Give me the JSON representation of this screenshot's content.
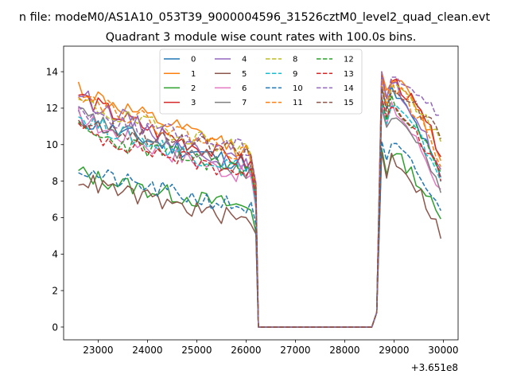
{
  "chart_data": {
    "type": "line",
    "suptitle": "n file: modeM0/AS1A10_053T39_9000004596_31526cztM0_level2_quad_clean.evt",
    "title": "Quadrant 3 module wise count rates with 100.0s bins.",
    "xlabel": "",
    "ylabel": "",
    "x_offset_label": "+3.651e8",
    "xlim": [
      22300,
      30300
    ],
    "ylim": [
      -0.7,
      15.4
    ],
    "xticks": [
      23000,
      24000,
      25000,
      26000,
      27000,
      28000,
      29000,
      30000
    ],
    "yticks": [
      0,
      2,
      4,
      6,
      8,
      10,
      12,
      14
    ],
    "grid": false,
    "legend_position": "upper-center",
    "legend_columns": 4,
    "segments": {
      "on1_start": 22600,
      "on1_end": 26100,
      "on1_step": 100,
      "gap_x": [
        26200,
        26250,
        28550,
        28650
      ],
      "on2_start": 28750,
      "on2_end": 29950,
      "on2_step": 100
    },
    "series": [
      {
        "name": "0",
        "color": "#1f77b4",
        "dash": "solid",
        "seg1_start": 11.5,
        "seg1_end": 8.9,
        "seg1_drop": 7.1,
        "seg2_peak": 13.2,
        "seg2_end": 8.1,
        "seed": 11
      },
      {
        "name": "1",
        "color": "#ff7f0e",
        "dash": "solid",
        "seg1_start": 13.2,
        "seg1_end": 9.6,
        "seg1_drop": 7.9,
        "seg2_peak": 14.0,
        "seg2_end": 9.4,
        "seed": 12
      },
      {
        "name": "2",
        "color": "#2ca02c",
        "dash": "solid",
        "seg1_start": 8.5,
        "seg1_end": 6.5,
        "seg1_drop": 5.2,
        "seg2_peak": 9.8,
        "seg2_end": 5.8,
        "seed": 13
      },
      {
        "name": "3",
        "color": "#d62728",
        "dash": "solid",
        "seg1_start": 12.8,
        "seg1_end": 8.9,
        "seg1_drop": 7.0,
        "seg2_peak": 13.8,
        "seg2_end": 9.6,
        "seed": 14
      },
      {
        "name": "4",
        "color": "#9467bd",
        "dash": "solid",
        "seg1_start": 12.9,
        "seg1_end": 8.7,
        "seg1_drop": 7.2,
        "seg2_peak": 13.6,
        "seg2_end": 8.5,
        "seed": 15
      },
      {
        "name": "5",
        "color": "#8c564b",
        "dash": "solid",
        "seg1_start": 8.2,
        "seg1_end": 5.8,
        "seg1_drop": 5.1,
        "seg2_peak": 9.6,
        "seg2_end": 5.1,
        "seed": 16
      },
      {
        "name": "6",
        "color": "#e377c2",
        "dash": "solid",
        "seg1_start": 11.6,
        "seg1_end": 8.2,
        "seg1_drop": 6.5,
        "seg2_peak": 12.3,
        "seg2_end": 7.4,
        "seed": 17
      },
      {
        "name": "7",
        "color": "#7f7f7f",
        "dash": "solid",
        "seg1_start": 11.8,
        "seg1_end": 8.5,
        "seg1_drop": 6.8,
        "seg2_peak": 12.0,
        "seg2_end": 7.6,
        "seed": 18
      },
      {
        "name": "8",
        "color": "#bcbd22",
        "dash": "dashed",
        "seg1_start": 12.4,
        "seg1_end": 9.7,
        "seg1_drop": 7.6,
        "seg2_peak": 13.6,
        "seg2_end": 10.0,
        "seed": 19
      },
      {
        "name": "9",
        "color": "#17becf",
        "dash": "dashed",
        "seg1_start": 11.6,
        "seg1_end": 8.6,
        "seg1_drop": 6.6,
        "seg2_peak": 12.4,
        "seg2_end": 8.2,
        "seed": 20
      },
      {
        "name": "10",
        "color": "#1f77b4",
        "dash": "dashed",
        "seg1_start": 8.7,
        "seg1_end": 6.5,
        "seg1_drop": 5.6,
        "seg2_peak": 10.2,
        "seg2_end": 6.2,
        "seed": 21
      },
      {
        "name": "11",
        "color": "#ff7f0e",
        "dash": "dashed",
        "seg1_start": 13.0,
        "seg1_end": 9.4,
        "seg1_drop": 7.4,
        "seg2_peak": 13.6,
        "seg2_end": 9.0,
        "seed": 22
      },
      {
        "name": "12",
        "color": "#2ca02c",
        "dash": "dashed",
        "seg1_start": 10.8,
        "seg1_end": 8.6,
        "seg1_drop": 7.2,
        "seg2_peak": 12.6,
        "seg2_end": 8.3,
        "seed": 23
      },
      {
        "name": "13",
        "color": "#d62728",
        "dash": "dashed",
        "seg1_start": 10.9,
        "seg1_end": 8.4,
        "seg1_drop": 7.0,
        "seg2_peak": 12.6,
        "seg2_end": 8.2,
        "seed": 24
      },
      {
        "name": "14",
        "color": "#9467bd",
        "dash": "dashed",
        "seg1_start": 12.0,
        "seg1_end": 9.8,
        "seg1_drop": 7.9,
        "seg2_peak": 14.0,
        "seg2_end": 11.4,
        "seed": 25
      },
      {
        "name": "15",
        "color": "#8c564b",
        "dash": "dashed",
        "seg1_start": 11.4,
        "seg1_end": 9.5,
        "seg1_drop": 7.6,
        "seg2_peak": 13.1,
        "seg2_end": 10.5,
        "seed": 26
      }
    ]
  }
}
